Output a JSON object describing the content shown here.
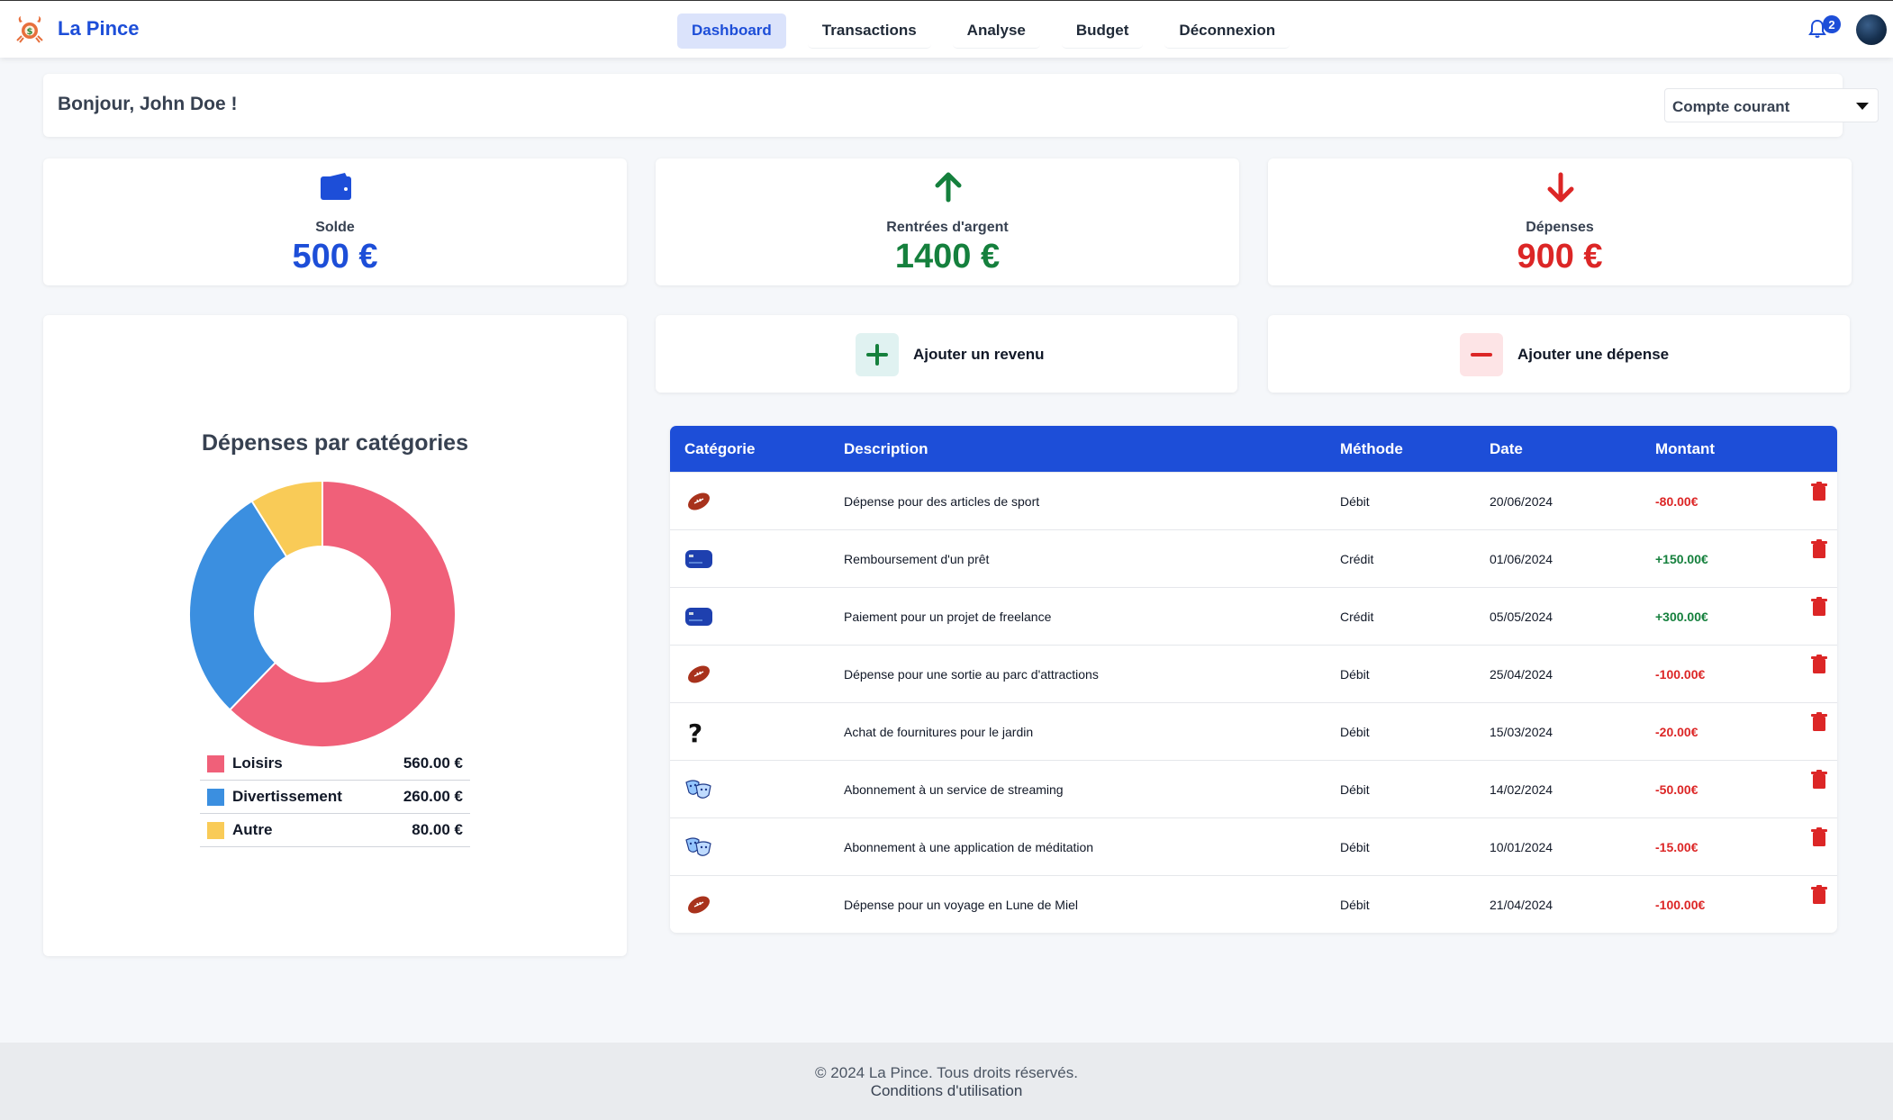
{
  "brand": {
    "name": "La Pince"
  },
  "nav": {
    "links": [
      {
        "label": "Dashboard",
        "active": true
      },
      {
        "label": "Transactions",
        "active": false
      },
      {
        "label": "Analyse",
        "active": false
      },
      {
        "label": "Budget",
        "active": false
      },
      {
        "label": "Déconnexion",
        "active": false
      }
    ],
    "notifications_count": "2"
  },
  "header": {
    "greeting": "Bonjour, John Doe !",
    "account_selected": "Compte courant"
  },
  "stats": {
    "balance": {
      "label": "Solde",
      "value": "500 €",
      "color": "#1d4ed8"
    },
    "income": {
      "label": "Rentrées d'argent",
      "value": "1400 €",
      "color": "#15803d"
    },
    "expenses": {
      "label": "Dépenses",
      "value": "900 €",
      "color": "#dc2626"
    }
  },
  "actions": {
    "add_income": "Ajouter un revenu",
    "add_expense": "Ajouter une dépense"
  },
  "chart_data": {
    "type": "pie",
    "title": "Dépenses par catégories",
    "categories": [
      "Loisirs",
      "Divertissement",
      "Autre"
    ],
    "values": [
      560,
      260,
      80
    ],
    "value_labels": [
      "560.00 €",
      "260.00 €",
      "80.00 €"
    ],
    "colors": [
      "#f06079",
      "#3b8fe0",
      "#f9cb57"
    ],
    "donut": true,
    "legend": "bottom"
  },
  "table": {
    "headers": [
      "Catégorie",
      "Description",
      "Méthode",
      "Date",
      "Montant"
    ],
    "rows": [
      {
        "icon": "football-icon",
        "description": "Dépense pour des articles de sport",
        "method": "Débit",
        "date": "20/06/2024",
        "amount": "-80.00€",
        "sign": "neg"
      },
      {
        "icon": "credit-card-icon",
        "description": "Remboursement d'un prêt",
        "method": "Crédit",
        "date": "01/06/2024",
        "amount": "+150.00€",
        "sign": "pos"
      },
      {
        "icon": "credit-card-icon",
        "description": "Paiement pour un projet de freelance",
        "method": "Crédit",
        "date": "05/05/2024",
        "amount": "+300.00€",
        "sign": "pos"
      },
      {
        "icon": "football-icon",
        "description": "Dépense pour une sortie au parc d'attractions",
        "method": "Débit",
        "date": "25/04/2024",
        "amount": "-100.00€",
        "sign": "neg"
      },
      {
        "icon": "question-mark-icon",
        "description": "Achat de fournitures pour le jardin",
        "method": "Débit",
        "date": "15/03/2024",
        "amount": "-20.00€",
        "sign": "neg"
      },
      {
        "icon": "theater-masks-icon",
        "description": "Abonnement à un service de streaming",
        "method": "Débit",
        "date": "14/02/2024",
        "amount": "-50.00€",
        "sign": "neg"
      },
      {
        "icon": "theater-masks-icon",
        "description": "Abonnement à une application de méditation",
        "method": "Débit",
        "date": "10/01/2024",
        "amount": "-15.00€",
        "sign": "neg"
      },
      {
        "icon": "football-icon",
        "description": "Dépense pour un voyage en Lune de Miel",
        "method": "Débit",
        "date": "21/04/2024",
        "amount": "-100.00€",
        "sign": "neg"
      }
    ]
  },
  "footer": {
    "copyright": "© 2024 La Pince. Tous droits réservés.",
    "terms_link": "Conditions d'utilisation"
  },
  "colors": {
    "primary": "#1d4ed8",
    "positive": "#15803d",
    "negative": "#dc2626"
  }
}
